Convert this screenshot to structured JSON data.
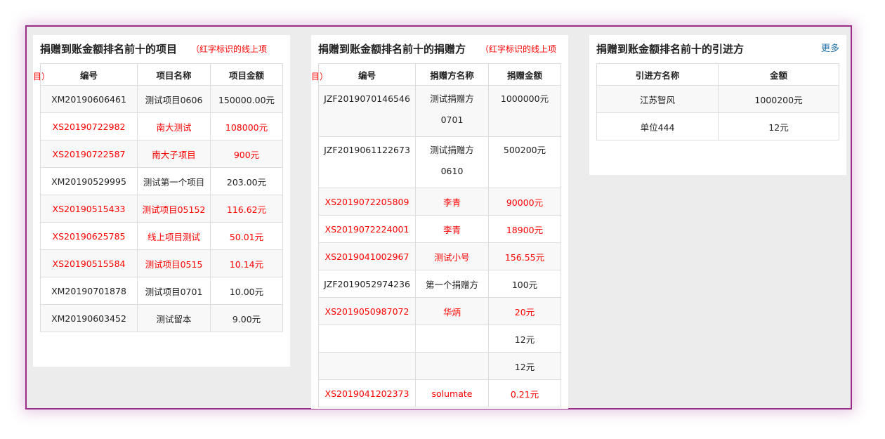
{
  "projects": {
    "title": "捐赠到账金额排名前十的项目",
    "note": "（红字标识的线上项目）",
    "note_a": "（红字标识的线上项",
    "note_b": "目）",
    "columns": [
      "编号",
      "项目名称",
      "项目金额"
    ],
    "rows": [
      {
        "id": "XM20190606461",
        "name": "测试项目0606",
        "amount": "150000.00元",
        "online": false
      },
      {
        "id": "XS20190722982",
        "name": "南大测试",
        "amount": "108000元",
        "online": true
      },
      {
        "id": "XS20190722587",
        "name": "南大子项目",
        "amount": "900元",
        "online": true
      },
      {
        "id": "XM20190529995",
        "name": "测试第一个项目",
        "amount": "203.00元",
        "online": false
      },
      {
        "id": "XS20190515433",
        "name": "测试项目05152",
        "amount": "116.62元",
        "online": true
      },
      {
        "id": "XS20190625785",
        "name": "线上项目测试",
        "amount": "50.01元",
        "online": true
      },
      {
        "id": "XS20190515584",
        "name": "测试项目0515",
        "amount": "10.14元",
        "online": true
      },
      {
        "id": "XM20190701878",
        "name": "测试项目0701",
        "amount": "10.00元",
        "online": false
      },
      {
        "id": "XM20190603452",
        "name": "测试留本",
        "amount": "9.00元",
        "online": false
      }
    ]
  },
  "donors": {
    "title": "捐赠到账金额排名前十的捐赠方",
    "note_a": "（红字标识的线上项",
    "note_b": "目）",
    "columns": [
      "编号",
      "捐赠方名称",
      "捐赠金额"
    ],
    "rows": [
      {
        "id": "JZF2019070146546",
        "name": "测试捐赠方0701",
        "amount": "1000000元",
        "online": false
      },
      {
        "id": "JZF2019061122673",
        "name": "测试捐赠方0610",
        "amount": "500200元",
        "online": false
      },
      {
        "id": "XS2019072205809",
        "name": "李青",
        "amount": "90000元",
        "online": true
      },
      {
        "id": "XS2019072224001",
        "name": "李青",
        "amount": "18900元",
        "online": true
      },
      {
        "id": "XS2019041002967",
        "name": "测试小号",
        "amount": "156.55元",
        "online": true
      },
      {
        "id": "JZF2019052974236",
        "name": "第一个捐赠方",
        "amount": "100元",
        "online": false
      },
      {
        "id": "XS2019050987072",
        "name": "华炳",
        "amount": "20元",
        "online": true
      },
      {
        "id": "",
        "name": "",
        "amount": "12元",
        "online": false
      },
      {
        "id": "",
        "name": "",
        "amount": "12元",
        "online": false
      },
      {
        "id": "XS2019041202373",
        "name": "solumate",
        "amount": "0.21元",
        "online": true
      }
    ]
  },
  "referrers": {
    "title": "捐赠到账金额排名前十的引进方",
    "more": "更多",
    "columns": [
      "引进方名称",
      "金额"
    ],
    "rows": [
      {
        "name": "江苏智风",
        "amount": "1000200元"
      },
      {
        "name": "单位444",
        "amount": "12元"
      }
    ]
  },
  "colors": {
    "online": "#ff0000",
    "frame": "#9b2d8a",
    "more_link": "#1e6ea8"
  }
}
